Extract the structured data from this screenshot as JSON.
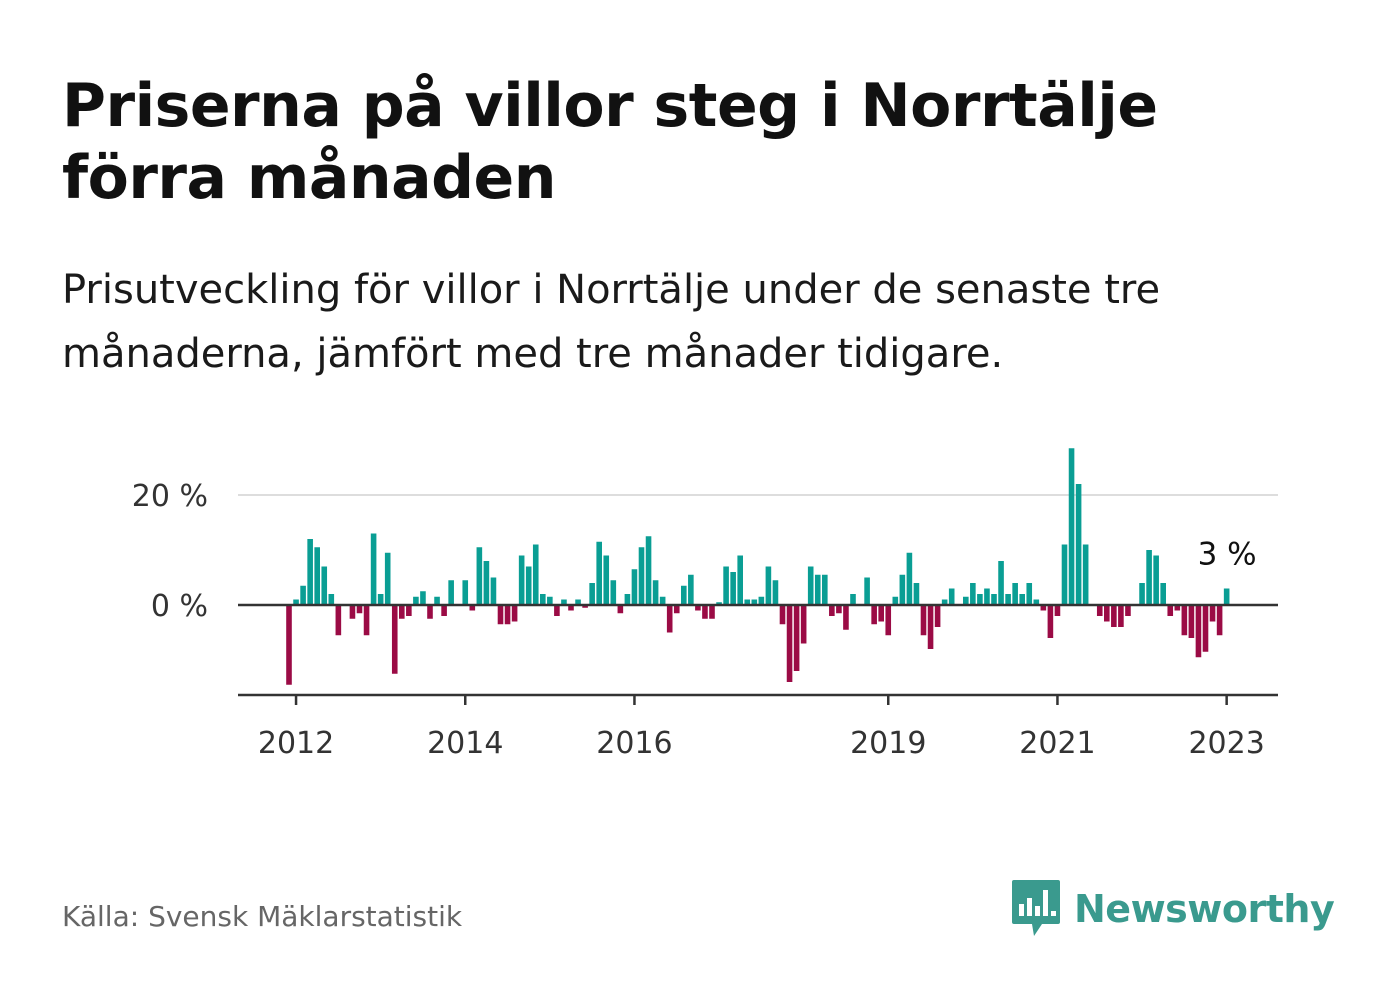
{
  "header": {
    "title": "Priserna på villor steg i Norrtälje förra månaden",
    "subtitle": "Prisutveckling för villor i Norrtälje under de senaste tre månaderna, jämfört med tre månader tidigare."
  },
  "footer": {
    "source": "Källa: Svensk Mäklarstatistik",
    "brand": "Newsworthy",
    "brand_icon": "bar-chart-speech-bubble-icon"
  },
  "colors": {
    "positive": "#0a9e94",
    "negative": "#9b0b45",
    "grid": "#dddddd",
    "axis": "#333333",
    "brand": "#3a9a8e"
  },
  "chart_data": {
    "type": "bar",
    "start": "2011-12",
    "unit": "%",
    "x_ticks": [
      "2012",
      "2014",
      "2016",
      "2019",
      "2021",
      "2023"
    ],
    "y_ticks": [
      {
        "value": 0,
        "label": "0 %"
      },
      {
        "value": 20,
        "label": "20 %"
      }
    ],
    "ylim": [
      -17,
      29
    ],
    "grid": "horizontal",
    "last_label": "3 %",
    "values": [
      -14.5,
      1,
      3.5,
      12,
      10.5,
      7,
      2,
      -5.5,
      0,
      -2.5,
      -1.5,
      -5.5,
      13,
      2,
      9.5,
      -12.5,
      -2.5,
      -2,
      1.5,
      2.5,
      -2.5,
      1.5,
      -2,
      4.5,
      0,
      4.5,
      -1,
      10.5,
      8,
      5,
      -3.5,
      -3.5,
      -3,
      9,
      7,
      11,
      2,
      1.5,
      -2,
      1,
      -1,
      1,
      -0.5,
      4,
      11.5,
      9,
      4.5,
      -1.5,
      2,
      6.5,
      10.5,
      12.5,
      4.5,
      1.5,
      -5,
      -1.5,
      3.5,
      5.5,
      -1,
      -2.5,
      -2.5,
      0.5,
      7,
      6,
      9,
      1,
      1,
      1.5,
      7,
      4.5,
      -3.5,
      -14,
      -12,
      -7,
      7,
      5.5,
      5.5,
      -2,
      -1.5,
      -4.5,
      2,
      0,
      5,
      -3.5,
      -3,
      -5.5,
      1.5,
      5.5,
      9.5,
      4,
      -5.5,
      -8,
      -4,
      1,
      3,
      0,
      1.5,
      4,
      2,
      3,
      2,
      8,
      2,
      4,
      2,
      4,
      1,
      -1,
      -6,
      -2,
      11,
      28.5,
      22,
      11,
      0,
      -2,
      -3,
      -4,
      -4,
      -2,
      0,
      4,
      10,
      9,
      4,
      -2,
      -1,
      -5.5,
      -6,
      -9.5,
      -8.5,
      -3,
      -5.5,
      3
    ]
  }
}
